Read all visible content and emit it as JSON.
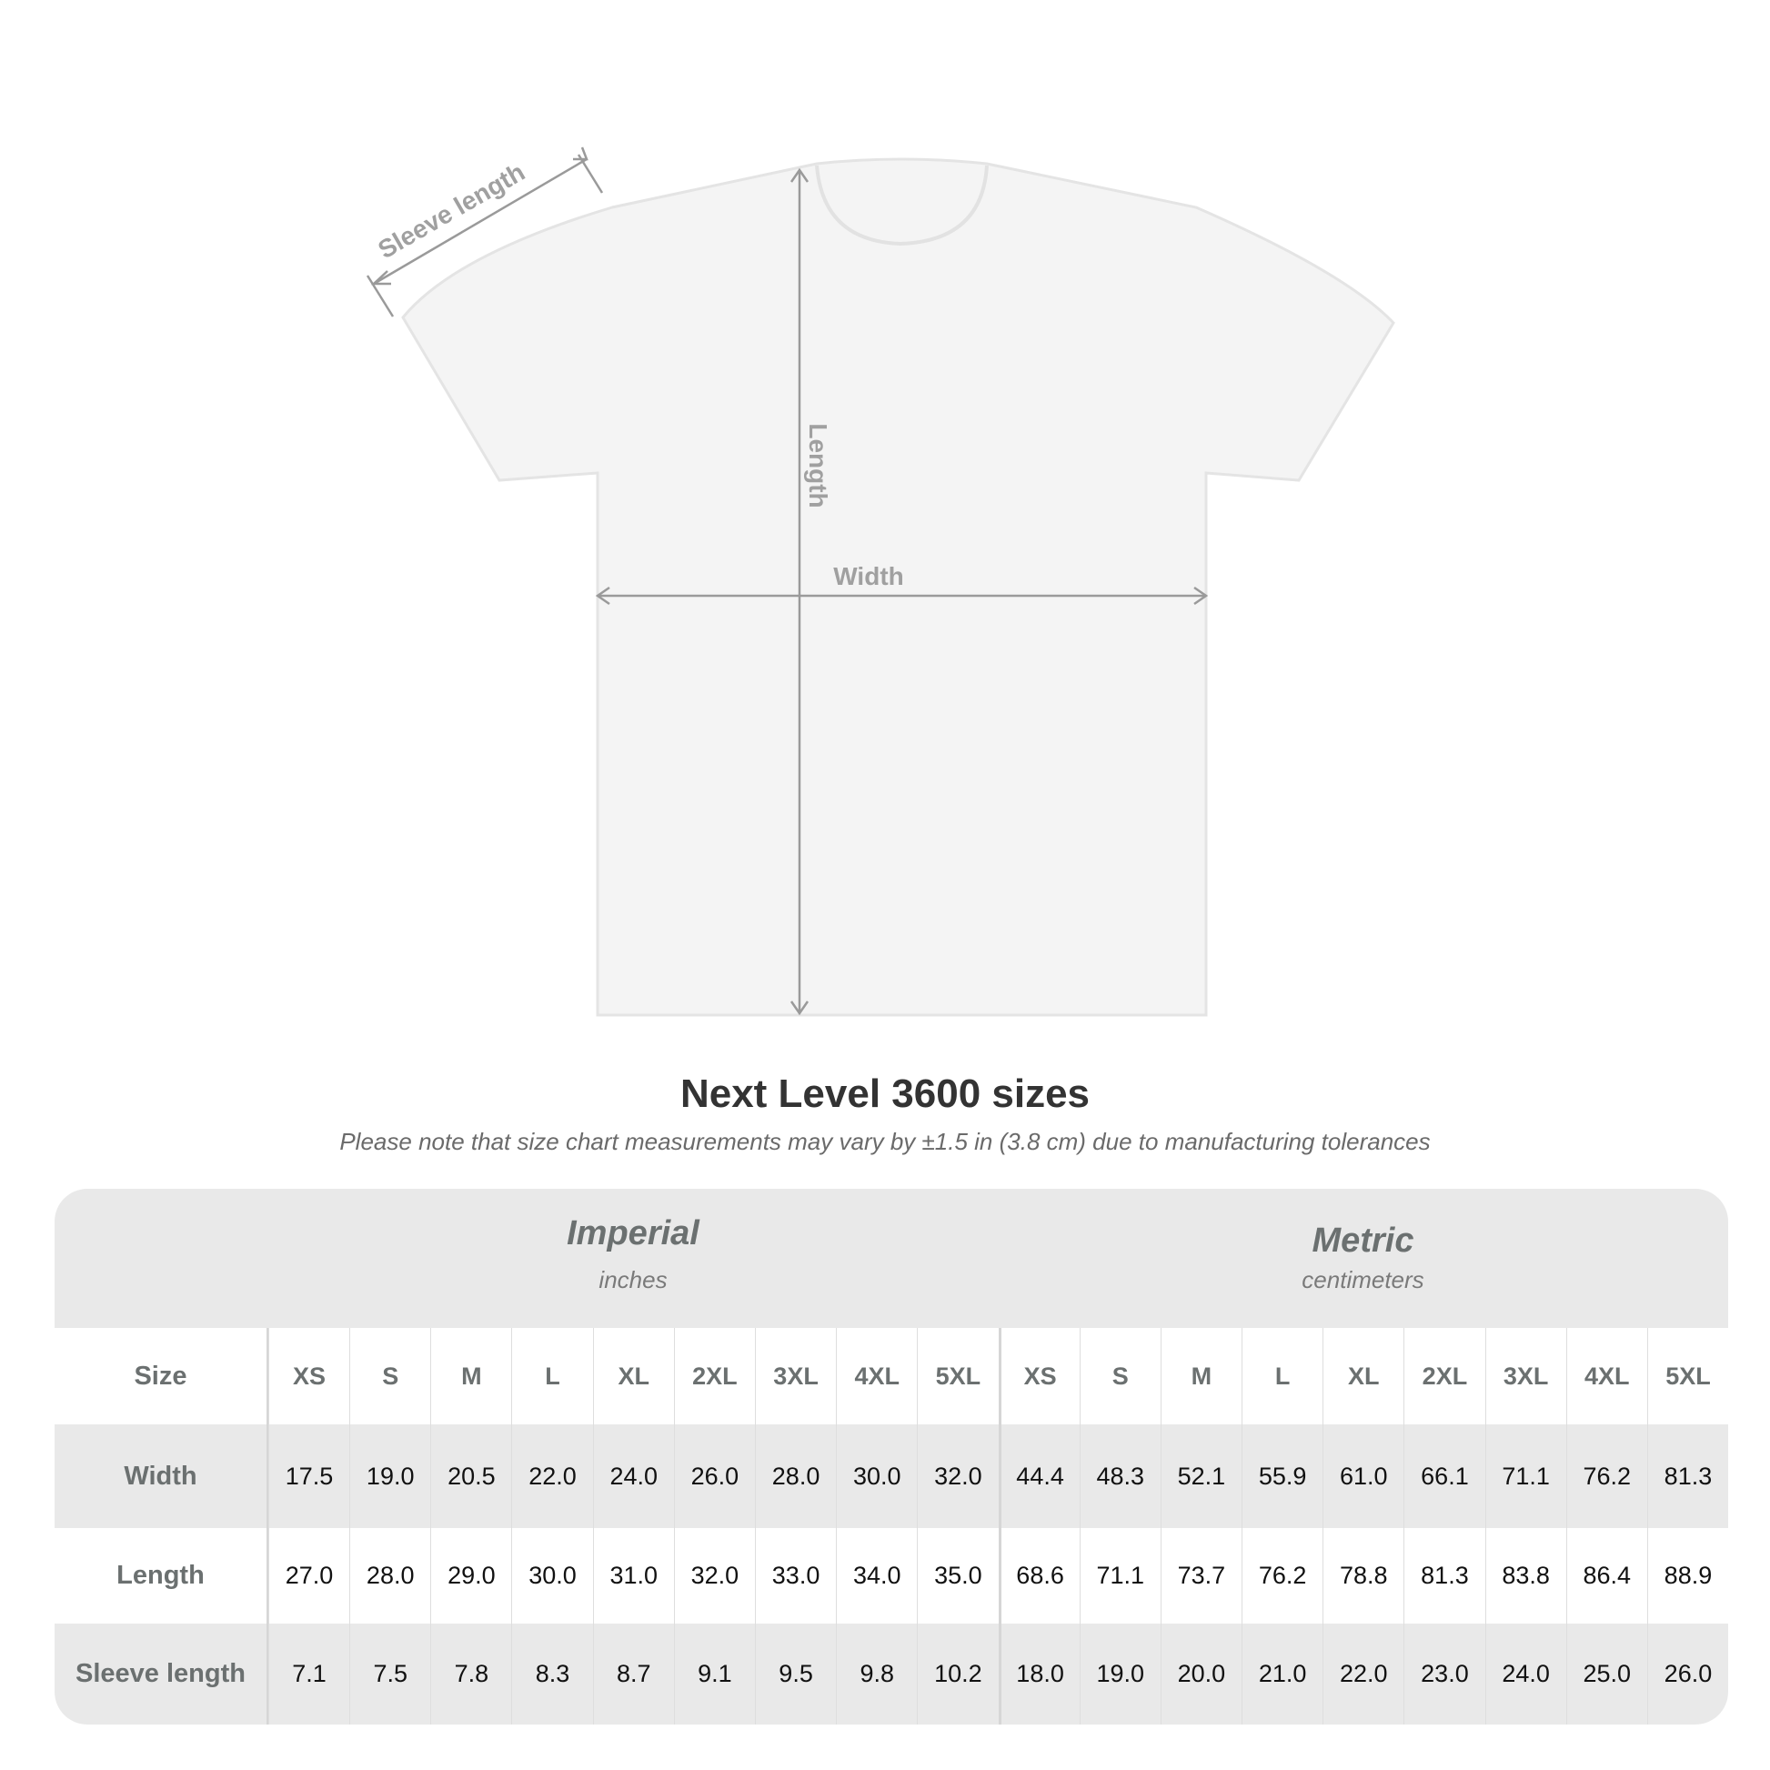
{
  "diagram": {
    "labels": {
      "sleeve": "Sleeve length",
      "length": "Length",
      "width": "Width"
    },
    "colors": {
      "shirt": "#f4f4f4",
      "arrow": "#9a9a9a"
    }
  },
  "title": "Next Level 3600 sizes",
  "subtitle": "Please note that size chart measurements may vary by ±1.5 in (3.8 cm) due to manufacturing tolerances",
  "table": {
    "imperial": {
      "name": "Imperial",
      "unit": "inches"
    },
    "metric": {
      "name": "Metric",
      "unit": "centimeters"
    },
    "size_label": "Size",
    "sizes": [
      "XS",
      "S",
      "M",
      "L",
      "XL",
      "2XL",
      "3XL",
      "4XL",
      "5XL"
    ],
    "rows": [
      {
        "label": "Width",
        "imperial": [
          "17.5",
          "19.0",
          "20.5",
          "22.0",
          "24.0",
          "26.0",
          "28.0",
          "30.0",
          "32.0"
        ],
        "metric": [
          "44.4",
          "48.3",
          "52.1",
          "55.9",
          "61.0",
          "66.1",
          "71.1",
          "76.2",
          "81.3"
        ]
      },
      {
        "label": "Length",
        "imperial": [
          "27.0",
          "28.0",
          "29.0",
          "30.0",
          "31.0",
          "32.0",
          "33.0",
          "34.0",
          "35.0"
        ],
        "metric": [
          "68.6",
          "71.1",
          "73.7",
          "76.2",
          "78.8",
          "81.3",
          "83.8",
          "86.4",
          "88.9"
        ]
      },
      {
        "label": "Sleeve length",
        "imperial": [
          "7.1",
          "7.5",
          "7.8",
          "8.3",
          "8.7",
          "9.1",
          "9.5",
          "9.8",
          "10.2"
        ],
        "metric": [
          "18.0",
          "19.0",
          "20.0",
          "21.0",
          "22.0",
          "23.0",
          "24.0",
          "25.0",
          "26.0"
        ]
      }
    ]
  }
}
